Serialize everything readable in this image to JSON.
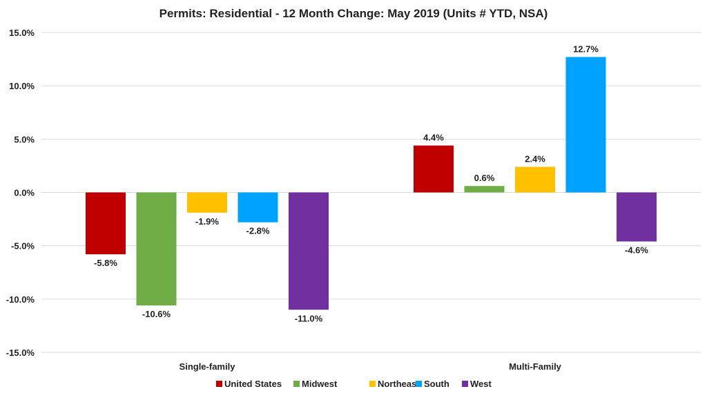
{
  "chart_data": {
    "type": "bar",
    "title": "Permits: Residential - 12 Month Change: May 2019 (Units # YTD, NSA)",
    "categories": [
      "Single-family",
      "Multi-Family"
    ],
    "series": [
      {
        "name": "United States",
        "color": "#c00000",
        "values": [
          -5.8,
          4.4
        ],
        "labels": [
          "-5.8%",
          "4.4%"
        ]
      },
      {
        "name": "Midwest",
        "color": "#70ad47",
        "values": [
          -10.6,
          0.6
        ],
        "labels": [
          "-10.6%",
          "0.6%"
        ]
      },
      {
        "name": "Northeast",
        "color": "#ffc000",
        "values": [
          -1.9,
          2.4
        ],
        "labels": [
          "-1.9%",
          "2.4%"
        ]
      },
      {
        "name": "South",
        "color": "#00a2ff",
        "values": [
          -2.8,
          12.7
        ],
        "labels": [
          "-2.8%",
          "12.7%"
        ]
      },
      {
        "name": "West",
        "color": "#7030a0",
        "values": [
          -11.0,
          -4.6
        ],
        "labels": [
          "-11.0%",
          "-4.6%"
        ]
      }
    ],
    "ylim": [
      -15,
      15
    ],
    "yticks": [
      15,
      10,
      5,
      0,
      -5,
      -10,
      -15
    ],
    "ytick_labels": [
      "15.0%",
      "10.0%",
      "5.0%",
      "0.0%",
      "-5.0%",
      "-10.0%",
      "-15.0%"
    ],
    "grid": true,
    "legend": "bottom"
  }
}
